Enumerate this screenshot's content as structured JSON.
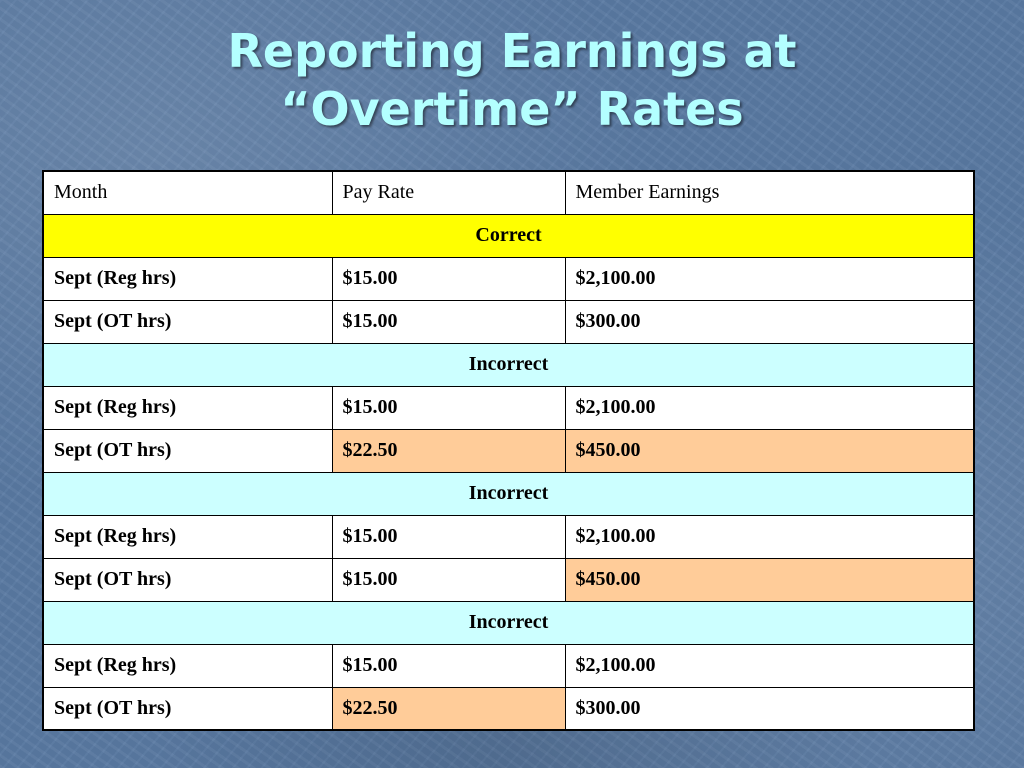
{
  "slide": {
    "title_line1": "Reporting Earnings at",
    "title_line2": "“Overtime” Rates",
    "title_color": "#b3ffff",
    "background_color": "#5a7aa3"
  },
  "table": {
    "headers": {
      "month": "Month",
      "pay_rate": "Pay Rate",
      "member_earnings": "Member Earnings"
    },
    "highlight_colors": {
      "correct_section": "#ffff00",
      "incorrect_section": "#ccffff",
      "error_cell": "#ffcc99"
    },
    "sections": [
      {
        "label": "Correct",
        "kind": "correct",
        "rows": [
          {
            "month": "Sept (Reg hrs)",
            "pay_rate": "$15.00",
            "earnings": "$2,100.00",
            "rate_error": false,
            "earnings_error": false
          },
          {
            "month": "Sept (OT hrs)",
            "pay_rate": "$15.00",
            "earnings": "$300.00",
            "rate_error": false,
            "earnings_error": false
          }
        ]
      },
      {
        "label": "Incorrect",
        "kind": "incorrect",
        "rows": [
          {
            "month": "Sept (Reg hrs)",
            "pay_rate": "$15.00",
            "earnings": "$2,100.00",
            "rate_error": false,
            "earnings_error": false
          },
          {
            "month": "Sept (OT hrs)",
            "pay_rate": "$22.50",
            "earnings": "$450.00",
            "rate_error": true,
            "earnings_error": true
          }
        ]
      },
      {
        "label": "Incorrect",
        "kind": "incorrect",
        "rows": [
          {
            "month": "Sept (Reg hrs)",
            "pay_rate": "$15.00",
            "earnings": "$2,100.00",
            "rate_error": false,
            "earnings_error": false
          },
          {
            "month": "Sept (OT hrs)",
            "pay_rate": "$15.00",
            "earnings": "$450.00",
            "rate_error": false,
            "earnings_error": true
          }
        ]
      },
      {
        "label": "Incorrect",
        "kind": "incorrect",
        "rows": [
          {
            "month": "Sept (Reg hrs)",
            "pay_rate": "$15.00",
            "earnings": "$2,100.00",
            "rate_error": false,
            "earnings_error": false
          },
          {
            "month": "Sept (OT hrs)",
            "pay_rate": "$22.50",
            "earnings": "$300.00",
            "rate_error": true,
            "earnings_error": false
          }
        ]
      }
    ]
  }
}
